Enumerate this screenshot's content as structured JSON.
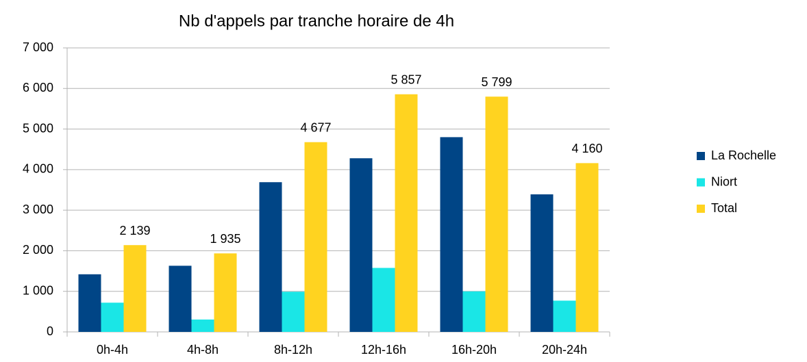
{
  "chart_data": {
    "type": "bar",
    "title": "Nb d'appels par tranche horaire de 4h",
    "categories": [
      "0h-4h",
      "4h-8h",
      "8h-12h",
      "12h-16h",
      "16h-20h",
      "20h-24h"
    ],
    "series": [
      {
        "name": "La Rochelle",
        "color": "#004586",
        "values": [
          1420,
          1630,
          3690,
          4280,
          4800,
          3390
        ]
      },
      {
        "name": "Niort",
        "color": "#1ae6e6",
        "values": [
          720,
          305,
          990,
          1577,
          999,
          770
        ]
      },
      {
        "name": "Total",
        "color": "#ffd320",
        "values": [
          2139,
          1935,
          4677,
          5857,
          5799,
          4160
        ],
        "value_labels": [
          "2 139",
          "1 935",
          "4 677",
          "5 857",
          "5 799",
          "4 160"
        ]
      }
    ],
    "ylim": [
      0,
      7000
    ],
    "yticks": [
      0,
      {
        "value": 1000,
        "label": "1 000"
      },
      {
        "value": 2000,
        "label": "2 000"
      },
      {
        "value": 3000,
        "label": "3 000"
      },
      {
        "value": 4000,
        "label": "4 000"
      },
      {
        "value": 5000,
        "label": "5 000"
      },
      {
        "value": 6000,
        "label": "6 000"
      },
      {
        "value": 7000,
        "label": "7 000"
      }
    ],
    "grid": true,
    "legend": "right"
  }
}
